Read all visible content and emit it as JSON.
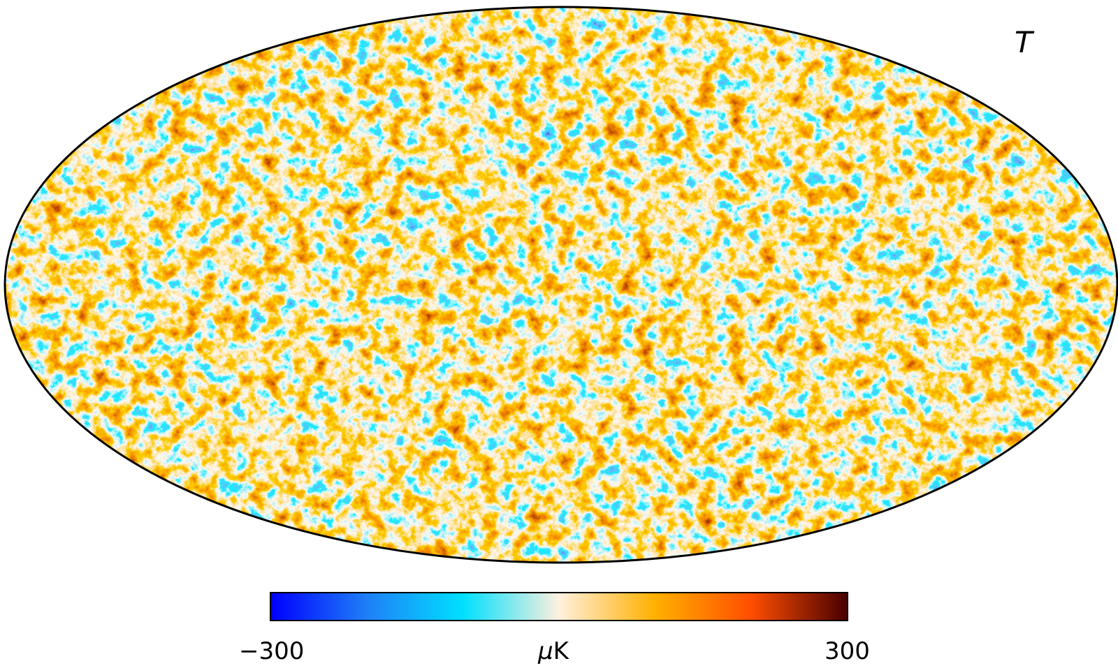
{
  "map": {
    "projection": "mollweide",
    "label": "T",
    "description_colors": {
      "min": "#0000ff",
      "low": "#1e6fef",
      "mid_low": "#00d9ff",
      "center": "#fff1de",
      "mid_high": "#f7a600",
      "high": "#f24b00",
      "max": "#4a0000"
    }
  },
  "colorbar": {
    "min_label": "−300",
    "max_label": "300",
    "unit_mu": "μ",
    "unit_k": "K",
    "stops": [
      "#0000ff",
      "#1f7ff7",
      "#00e0ff",
      "#fff0de",
      "#ffb000",
      "#ff4e00",
      "#4a0000"
    ]
  }
}
